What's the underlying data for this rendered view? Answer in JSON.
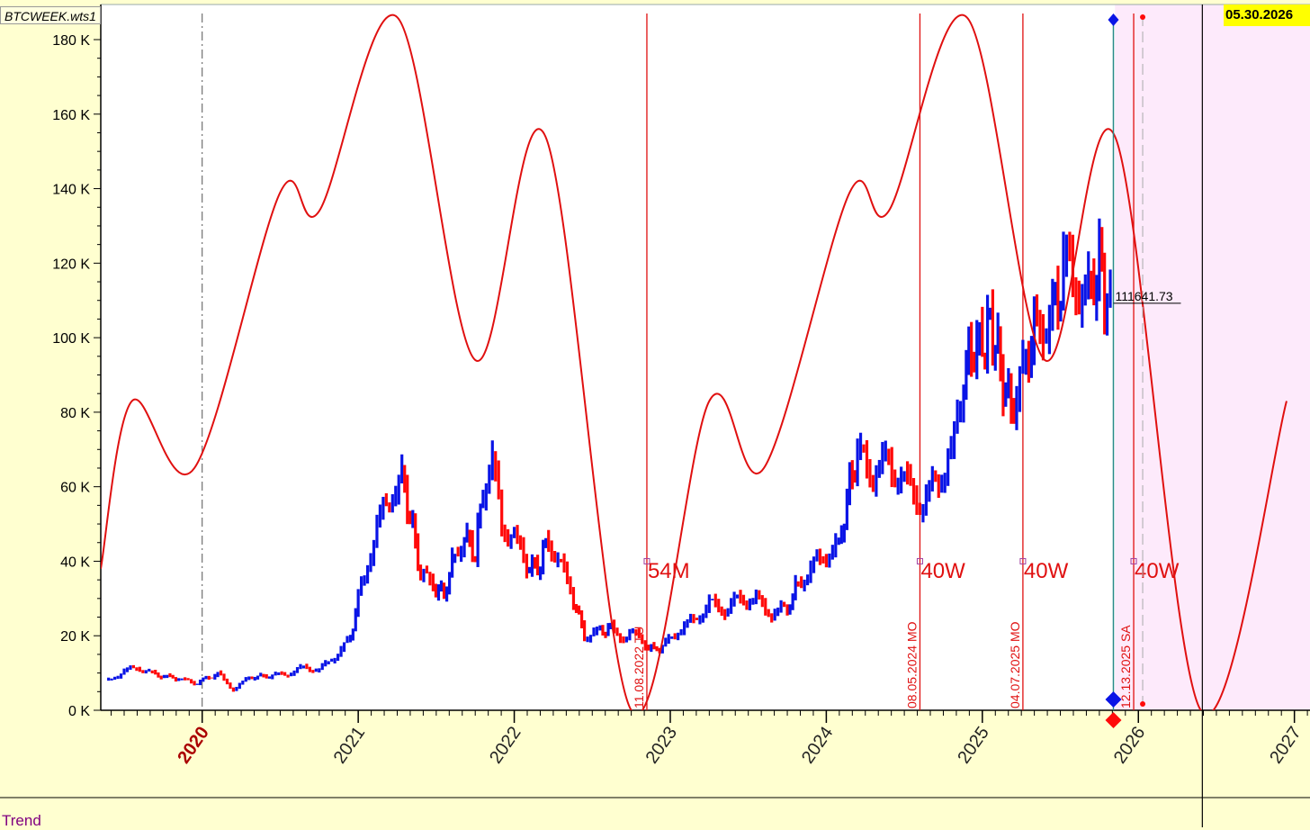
{
  "file_label": "BTCWEEK.wts1",
  "cursor_date": "05.30.2026",
  "panel_title": "Trend",
  "last_price_label": "111641.73",
  "colors": {
    "up_bar": "#0a14e6",
    "down_bar": "#ff0a0a",
    "cycle_line": "#e01010",
    "future_shade": "#fdeafb",
    "background": "#ffffd0",
    "plot_bg": "#ffffff",
    "cursor_highlight": "#ffff00",
    "teal_line": "#2a8a8a"
  },
  "chart_data": {
    "type": "line",
    "title": "",
    "ylabel": "",
    "ylim": [
      0,
      180000
    ],
    "y_ticks": [
      "0 K",
      "20 K",
      "40 K",
      "60 K",
      "80 K",
      "100 K",
      "120 K",
      "140 K",
      "160 K",
      "180 K"
    ],
    "x_ticks": [
      {
        "label": "2020",
        "year": 2020,
        "highlight": true
      },
      {
        "label": "2021",
        "year": 2021
      },
      {
        "label": "2022",
        "year": 2022
      },
      {
        "label": "2023",
        "year": 2023
      },
      {
        "label": "2024",
        "year": 2024
      },
      {
        "label": "2025",
        "year": 2025
      },
      {
        "label": "2026",
        "year": 2026
      },
      {
        "label": "2027",
        "year": 2027
      }
    ],
    "xlim_years": [
      2019.35,
      2027.1
    ],
    "price_series": {
      "name": "",
      "points": [
        [
          2019.4,
          8000
        ],
        [
          2019.5,
          10500
        ],
        [
          2019.58,
          11500
        ],
        [
          2019.7,
          9500
        ],
        [
          2019.85,
          8500
        ],
        [
          2019.95,
          7200
        ],
        [
          2020.1,
          9800
        ],
        [
          2020.2,
          5500
        ],
        [
          2020.3,
          8800
        ],
        [
          2020.45,
          9300
        ],
        [
          2020.55,
          9800
        ],
        [
          2020.65,
          11500
        ],
        [
          2020.75,
          10800
        ],
        [
          2020.85,
          14500
        ],
        [
          2020.95,
          19000
        ],
        [
          2021.0,
          30000
        ],
        [
          2021.1,
          46000
        ],
        [
          2021.2,
          58000
        ],
        [
          2021.28,
          62000
        ],
        [
          2021.35,
          49000
        ],
        [
          2021.4,
          36000
        ],
        [
          2021.48,
          33500
        ],
        [
          2021.55,
          31000
        ],
        [
          2021.62,
          42000
        ],
        [
          2021.68,
          47000
        ],
        [
          2021.75,
          42000
        ],
        [
          2021.8,
          60000
        ],
        [
          2021.86,
          66000
        ],
        [
          2021.92,
          50000
        ],
        [
          2022.0,
          46000
        ],
        [
          2022.08,
          39000
        ],
        [
          2022.15,
          38000
        ],
        [
          2022.22,
          46000
        ],
        [
          2022.3,
          38500
        ],
        [
          2022.38,
          30000
        ],
        [
          2022.45,
          20000
        ],
        [
          2022.55,
          21000
        ],
        [
          2022.62,
          22000
        ],
        [
          2022.7,
          19500
        ],
        [
          2022.8,
          20500
        ],
        [
          2022.86,
          16500
        ],
        [
          2022.95,
          16800
        ],
        [
          2023.05,
          21500
        ],
        [
          2023.15,
          24000
        ],
        [
          2023.25,
          28500
        ],
        [
          2023.35,
          27000
        ],
        [
          2023.45,
          30000
        ],
        [
          2023.55,
          29500
        ],
        [
          2023.65,
          26000
        ],
        [
          2023.75,
          27000
        ],
        [
          2023.82,
          34500
        ],
        [
          2023.9,
          37500
        ],
        [
          2024.0,
          42500
        ],
        [
          2024.08,
          43500
        ],
        [
          2024.15,
          61000
        ],
        [
          2024.2,
          68000
        ],
        [
          2024.3,
          64000
        ],
        [
          2024.4,
          66500
        ],
        [
          2024.5,
          61000
        ],
        [
          2024.58,
          58000
        ],
        [
          2024.62,
          54000
        ],
        [
          2024.7,
          62000
        ],
        [
          2024.8,
          67000
        ],
        [
          2024.88,
          90000
        ],
        [
          2024.93,
          97000
        ],
        [
          2025.0,
          98000
        ],
        [
          2025.05,
          104000
        ],
        [
          2025.1,
          96000
        ],
        [
          2025.15,
          84000
        ],
        [
          2025.22,
          82000
        ],
        [
          2025.28,
          94000
        ],
        [
          2025.35,
          104000
        ],
        [
          2025.45,
          106000
        ],
        [
          2025.52,
          118000
        ],
        [
          2025.6,
          116000
        ],
        [
          2025.68,
          111000
        ],
        [
          2025.75,
          120000
        ],
        [
          2025.8,
          108000
        ],
        [
          2025.84,
          111641.73
        ]
      ]
    },
    "cycle_series": {
      "name": "",
      "points": [
        [
          2019.35,
          38000
        ],
        [
          2019.55,
          83000
        ],
        [
          2019.95,
          65000
        ],
        [
          2020.5,
          139000
        ],
        [
          2020.75,
          134000
        ],
        [
          2021.25,
          186000
        ],
        [
          2021.75,
          94000
        ],
        [
          2022.2,
          154000
        ],
        [
          2022.75,
          0
        ],
        [
          2023.25,
          83000
        ],
        [
          2023.6,
          65000
        ],
        [
          2024.15,
          139000
        ],
        [
          2024.4,
          134000
        ],
        [
          2024.9,
          186000
        ],
        [
          2025.4,
          94000
        ],
        [
          2025.85,
          154000
        ],
        [
          2026.4,
          0
        ],
        [
          2026.95,
          83000
        ]
      ]
    },
    "cycle_markers": [
      {
        "label": "54M",
        "year": 2022.85,
        "date_label": "11.08.2022 TU"
      },
      {
        "label": "40W",
        "year": 2024.6,
        "date_label": "08.05.2024 MO"
      },
      {
        "label": "40W",
        "year": 2025.26,
        "date_label": "04.07.2025 MO"
      },
      {
        "label": "40W",
        "year": 2025.97,
        "date_label": "12.13.2025 SA"
      }
    ],
    "today_line_year": 2025.84,
    "future_shade_start_year": 2025.85,
    "cursor_line_year": 2026.41,
    "grid": false,
    "legend": "none"
  }
}
